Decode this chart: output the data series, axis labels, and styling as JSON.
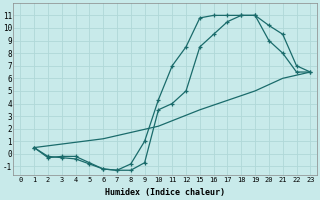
{
  "xlabel": "Humidex (Indice chaleur)",
  "bg_color": "#c8eaea",
  "grid_color": "#b0d8d8",
  "line_color": "#1a6b6b",
  "xlim": [
    -0.5,
    23.5
  ],
  "ylim": [
    -1.7,
    12.0
  ],
  "xticks": [
    0,
    1,
    2,
    3,
    4,
    5,
    6,
    7,
    8,
    9,
    10,
    11,
    12,
    15,
    16,
    17,
    18,
    19,
    20,
    21,
    22,
    23
  ],
  "yticks": [
    -1,
    0,
    1,
    2,
    3,
    4,
    5,
    6,
    7,
    8,
    9,
    10,
    11
  ],
  "line1_x": [
    1,
    2,
    3,
    4,
    5,
    6,
    7,
    8,
    9,
    10,
    11,
    12,
    15,
    16,
    17,
    18,
    19,
    20,
    21,
    22,
    23
  ],
  "line1_y": [
    0.5,
    -0.3,
    -0.2,
    -0.2,
    -0.7,
    -1.2,
    -1.3,
    -0.8,
    1.0,
    4.3,
    7.0,
    8.5,
    10.8,
    11.0,
    11.0,
    11.0,
    11.0,
    10.2,
    9.5,
    7.0,
    6.5
  ],
  "line2_x": [
    1,
    2,
    3,
    4,
    5,
    6,
    7,
    8,
    9,
    10,
    11,
    12,
    15,
    16,
    17,
    18,
    19,
    20,
    21,
    22,
    23
  ],
  "line2_y": [
    0.5,
    -0.2,
    -0.3,
    -0.4,
    -0.8,
    -1.2,
    -1.3,
    -1.3,
    -0.7,
    3.5,
    4.0,
    5.0,
    8.5,
    9.5,
    10.5,
    11.0,
    11.0,
    9.0,
    8.0,
    6.5,
    6.5
  ],
  "line3_x": [
    1,
    6,
    10,
    15,
    19,
    21,
    23
  ],
  "line3_y": [
    0.5,
    1.2,
    2.2,
    3.5,
    5.0,
    6.0,
    6.5
  ]
}
